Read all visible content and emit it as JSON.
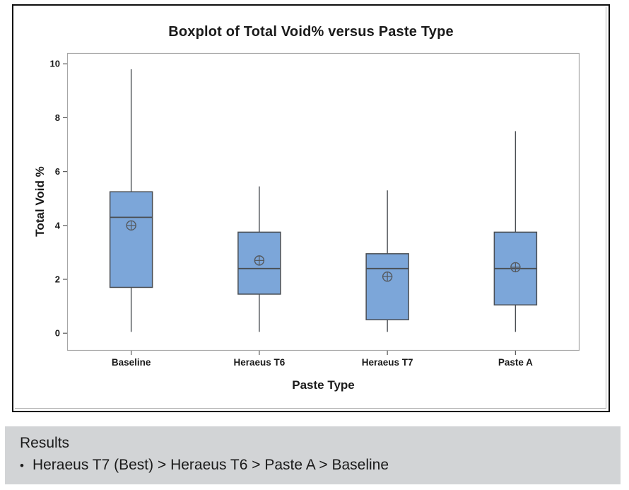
{
  "chart_data": {
    "type": "boxplot",
    "title": "Boxplot of Total Void% versus Paste Type",
    "xlabel": "Paste Type",
    "ylabel": "Total Void %",
    "ylim": [
      -0.65,
      10.4
    ],
    "yticks": [
      0,
      2,
      4,
      6,
      8,
      10
    ],
    "categories": [
      "Baseline",
      "Heraeus T6",
      "Heraeus T7",
      "Paste A"
    ],
    "series": [
      {
        "name": "Baseline",
        "min": 0.05,
        "q1": 1.7,
        "median": 4.3,
        "q3": 5.25,
        "max": 9.8,
        "mean": 4.0
      },
      {
        "name": "Heraeus T6",
        "min": 0.05,
        "q1": 1.45,
        "median": 2.4,
        "q3": 3.75,
        "max": 5.45,
        "mean": 2.7
      },
      {
        "name": "Heraeus T7",
        "min": 0.05,
        "q1": 0.5,
        "median": 2.4,
        "q3": 2.95,
        "max": 5.3,
        "mean": 2.1
      },
      {
        "name": "Paste A",
        "min": 0.05,
        "q1": 1.05,
        "median": 2.4,
        "q3": 3.75,
        "max": 7.5,
        "mean": 2.45
      }
    ],
    "legend": "none",
    "grid": false,
    "style": {
      "box_fill": "#7CA6D9",
      "box_stroke": "#4A4E53",
      "whisker_stroke": "#4A4E53",
      "median_stroke": "#4A4E53",
      "mean_marker": "circle-plus",
      "mean_stroke": "#55595E",
      "plot_border": "#A6A6A6",
      "tick_color": "#595959",
      "tick_label_color": "#1a1a1a"
    }
  },
  "results": {
    "heading": "Results",
    "bullet_glyph": "•",
    "bullet_text": "Heraeus T7 (Best) > Heraeus T6 > Paste A > Baseline"
  }
}
